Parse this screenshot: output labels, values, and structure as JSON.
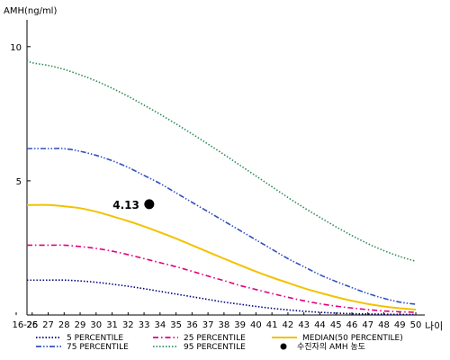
{
  "chart_data": {
    "type": "line",
    "title": "",
    "ylabel": "AMH(ng/ml)",
    "xlabel": "나이",
    "x": [
      "16-25",
      "26",
      "27",
      "28",
      "29",
      "30",
      "31",
      "32",
      "33",
      "34",
      "35",
      "36",
      "37",
      "38",
      "39",
      "40",
      "41",
      "42",
      "43",
      "44",
      "45",
      "46",
      "47",
      "48",
      "49",
      "50"
    ],
    "ylim": [
      0,
      11
    ],
    "yticks": [
      5,
      10
    ],
    "grid": false,
    "legend": "bottom",
    "series": [
      {
        "name": "5 PERCENTILE",
        "color": "#000080",
        "dash": "dotted",
        "values": [
          1.3,
          1.3,
          1.3,
          1.3,
          1.27,
          1.22,
          1.15,
          1.07,
          0.98,
          0.88,
          0.78,
          0.68,
          0.58,
          0.48,
          0.4,
          0.32,
          0.25,
          0.19,
          0.14,
          0.1,
          0.07,
          0.05,
          0.04,
          0.03,
          0.02,
          0.02
        ]
      },
      {
        "name": "25 PERCENTILE",
        "color": "#e0007a",
        "dash": "dashdot",
        "values": [
          2.6,
          2.6,
          2.6,
          2.6,
          2.55,
          2.48,
          2.38,
          2.25,
          2.1,
          1.95,
          1.8,
          1.63,
          1.45,
          1.28,
          1.1,
          0.95,
          0.8,
          0.66,
          0.53,
          0.42,
          0.33,
          0.26,
          0.2,
          0.15,
          0.12,
          0.1
        ]
      },
      {
        "name": "MEDIAN(50 PERCENTILE)",
        "color": "#f2c200",
        "dash": "solid",
        "values": [
          4.1,
          4.1,
          4.1,
          4.05,
          3.98,
          3.85,
          3.68,
          3.5,
          3.3,
          3.08,
          2.85,
          2.6,
          2.35,
          2.1,
          1.86,
          1.62,
          1.4,
          1.2,
          1.0,
          0.83,
          0.67,
          0.53,
          0.41,
          0.32,
          0.25,
          0.2
        ]
      },
      {
        "name": "75 PERCENTILE",
        "color": "#3050c0",
        "dash": "dashdotdot",
        "values": [
          6.2,
          6.2,
          6.2,
          6.2,
          6.1,
          5.95,
          5.75,
          5.5,
          5.2,
          4.9,
          4.55,
          4.2,
          3.85,
          3.5,
          3.15,
          2.8,
          2.45,
          2.1,
          1.8,
          1.5,
          1.25,
          1.02,
          0.8,
          0.62,
          0.48,
          0.4
        ]
      },
      {
        "name": "95 PERCENTILE",
        "color": "#2e8b57",
        "dash": "dotted",
        "values": [
          9.5,
          9.4,
          9.3,
          9.15,
          8.95,
          8.72,
          8.45,
          8.15,
          7.82,
          7.48,
          7.12,
          6.75,
          6.37,
          5.98,
          5.58,
          5.18,
          4.78,
          4.38,
          4.0,
          3.64,
          3.29,
          2.96,
          2.66,
          2.4,
          2.18,
          2.0
        ]
      }
    ],
    "point": {
      "name": "수진자의 AMH 농도",
      "x": "34",
      "y": 4.13,
      "label": "4.13"
    }
  }
}
